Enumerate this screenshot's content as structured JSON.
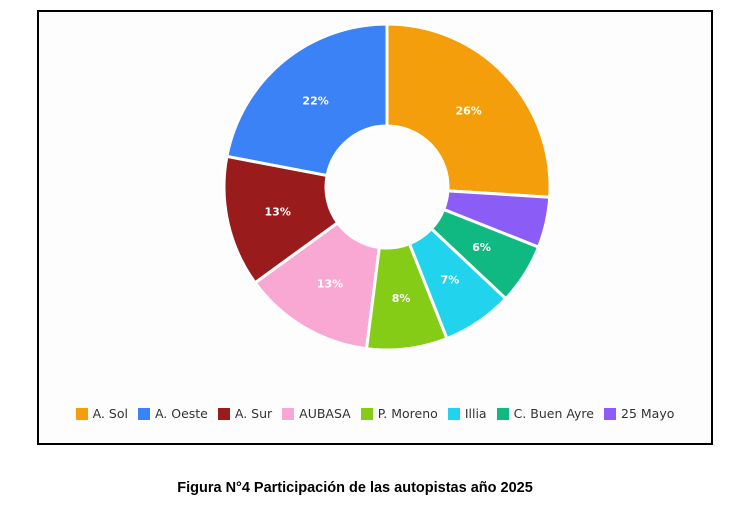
{
  "chart_data": {
    "type": "pie",
    "donut": true,
    "title": "",
    "categories": [
      "A. Sol",
      "A. Oeste",
      "A. Sur",
      "AUBASA",
      "P. Moreno",
      "Illia",
      "C. Buen Ayre",
      "25 Mayo"
    ],
    "values": [
      26,
      22,
      13,
      13,
      8,
      7,
      6,
      5
    ],
    "data_labels": [
      "26%",
      "22%",
      "13%",
      "13%",
      "8%",
      "7%",
      "6%",
      ""
    ],
    "colors": [
      "#f59e0b",
      "#3b82f6",
      "#991b1b",
      "#f9a8d4",
      "#84cc16",
      "#22d3ee",
      "#10b981",
      "#8b5cf6"
    ],
    "legend_position": "bottom",
    "direction": "counterclockwise-from-top"
  },
  "caption": "Figura N°4 Participación de las autopistas año 2025"
}
